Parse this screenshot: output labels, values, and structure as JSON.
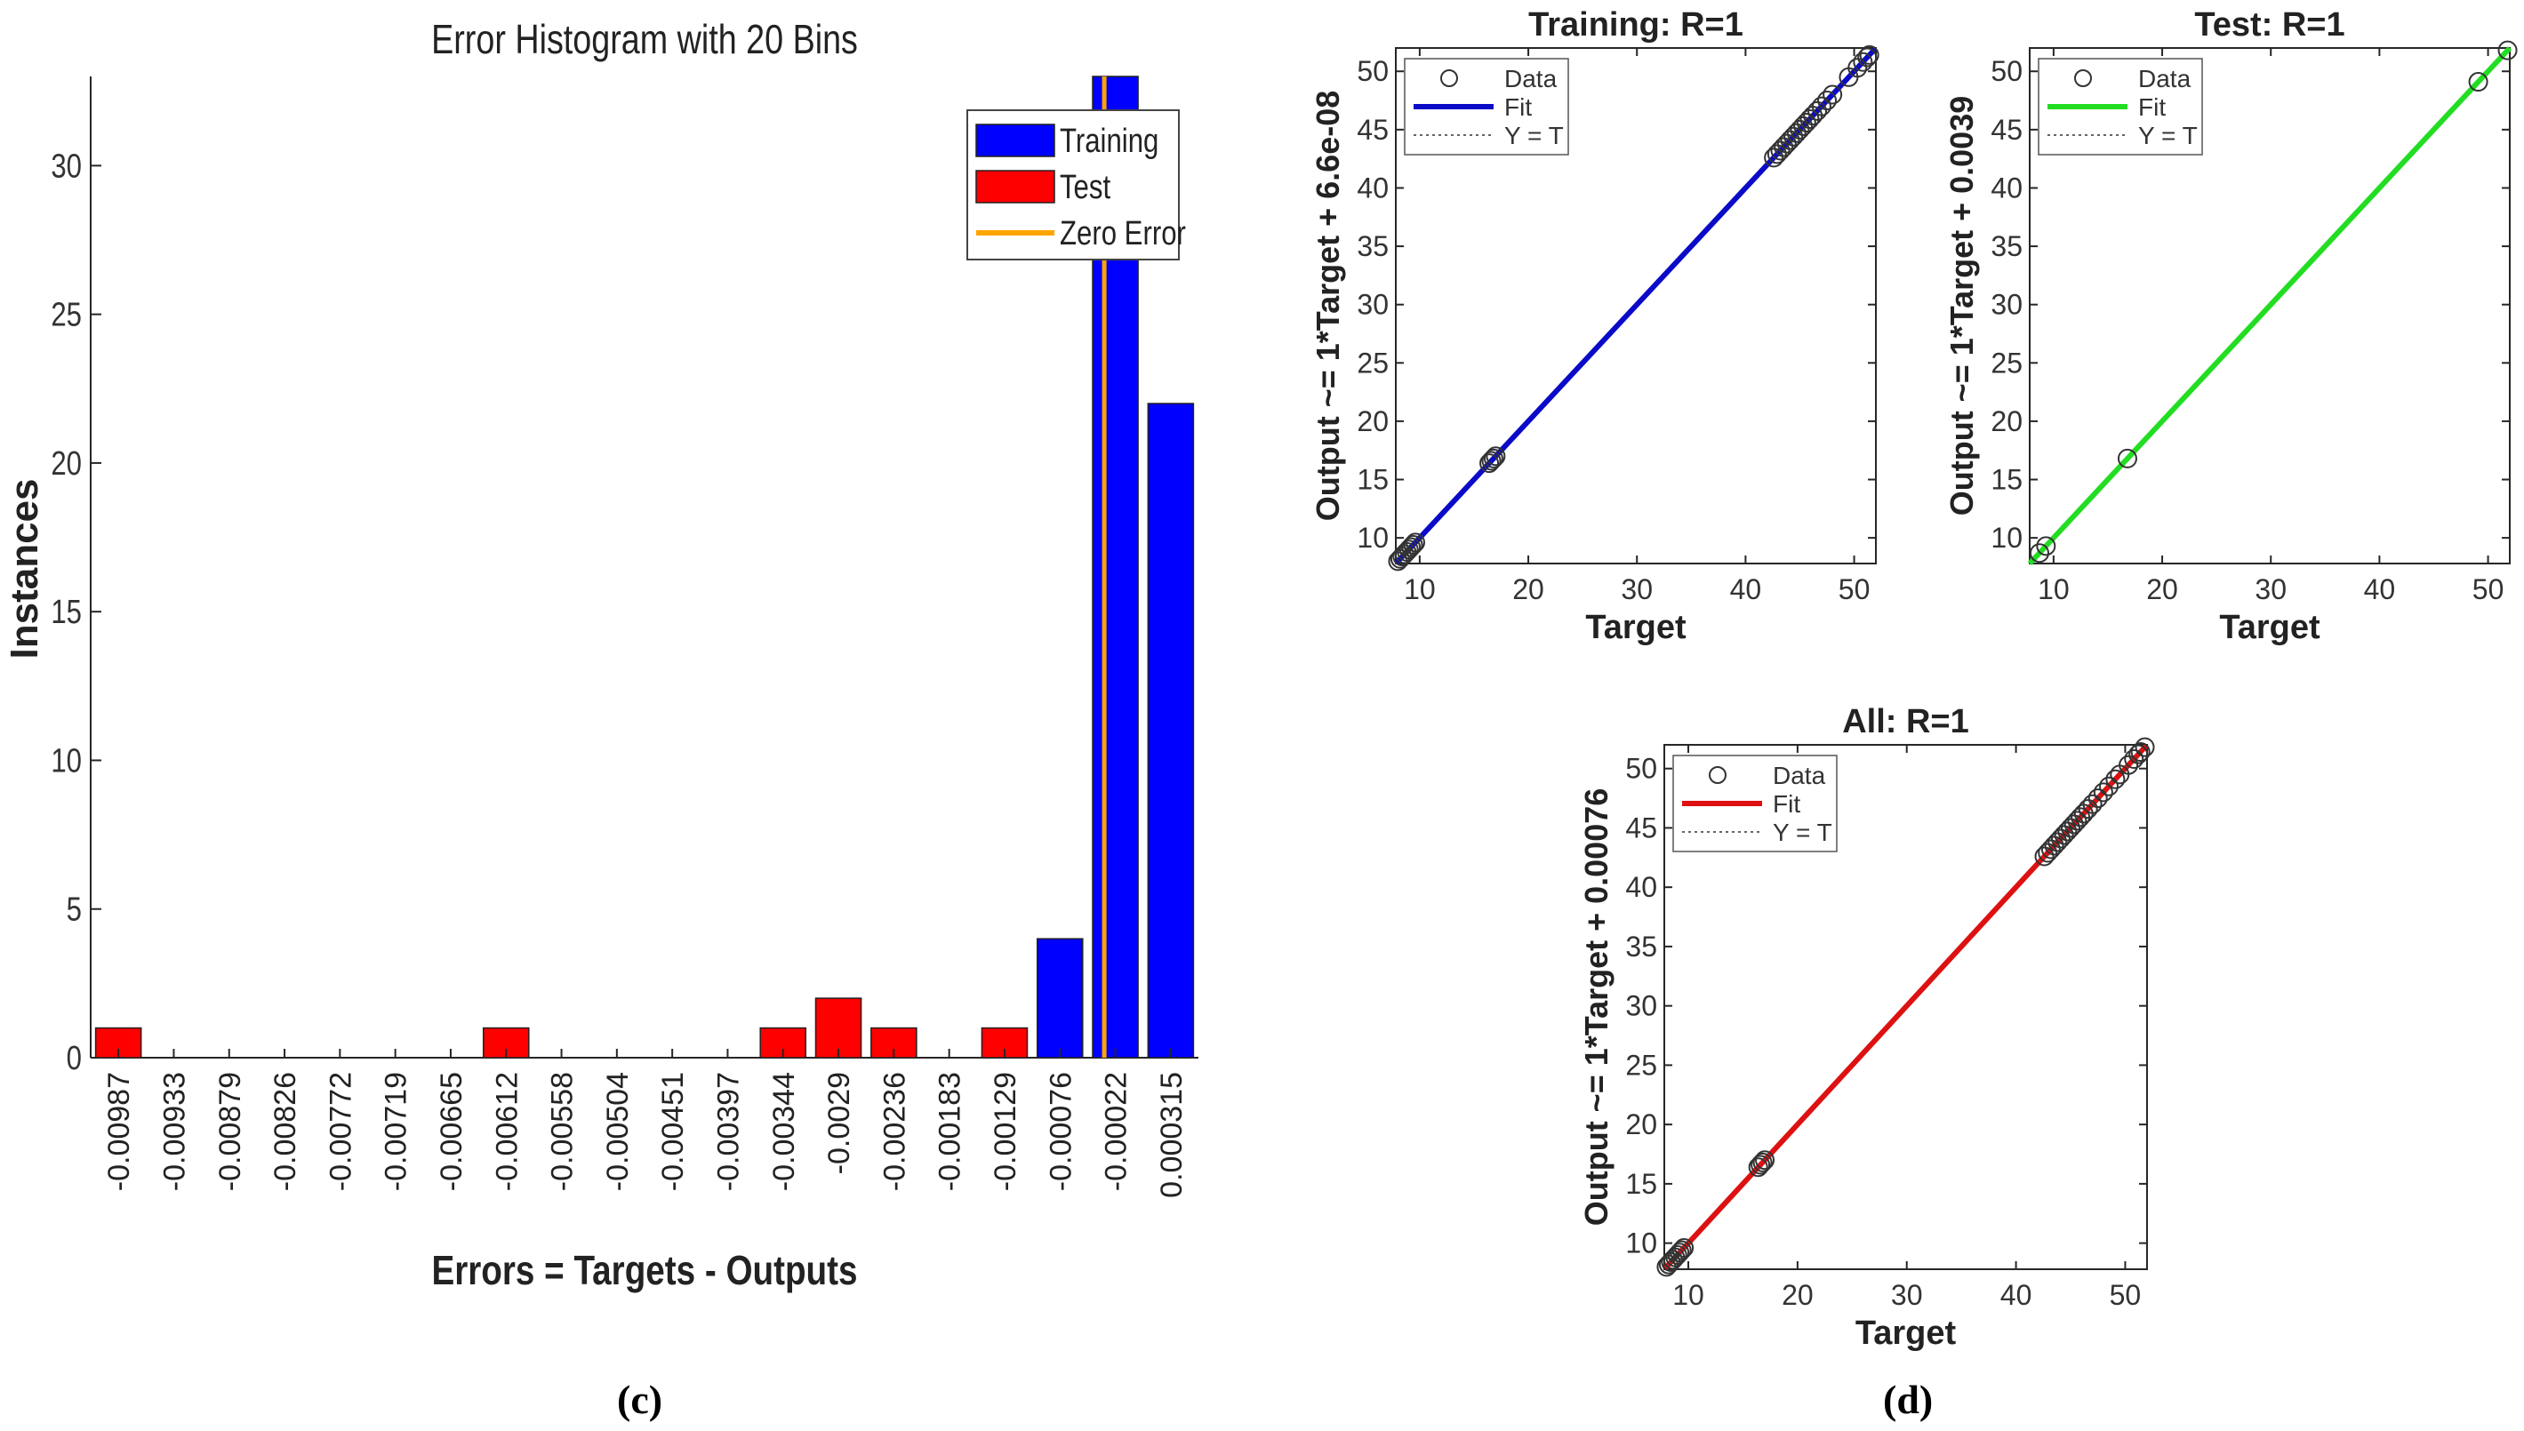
{
  "figure": {
    "caption_left": "(c)",
    "caption_right": "(d)"
  },
  "chart_data": [
    {
      "id": "histogram",
      "type": "bar",
      "title": "Error Histogram with 20 Bins",
      "xlabel": "Errors = Targets - Outputs",
      "ylabel": "Instances",
      "ylim": [
        0,
        33
      ],
      "yticks": [
        0,
        5,
        10,
        15,
        20,
        25,
        30
      ],
      "categories": [
        "-0.00987",
        "-0.00933",
        "-0.00879",
        "-0.00826",
        "-0.00772",
        "-0.00719",
        "-0.00665",
        "-0.00612",
        "-0.00558",
        "-0.00504",
        "-0.00451",
        "-0.00397",
        "-0.00344",
        "-0.0029",
        "-0.00236",
        "-0.00183",
        "-0.00129",
        "-0.00076",
        "-0.00022",
        "0.000315"
      ],
      "series": [
        {
          "name": "Training",
          "color": "#0000ff",
          "values": [
            0,
            0,
            0,
            0,
            0,
            0,
            0,
            0,
            0,
            0,
            0,
            0,
            0,
            0,
            0,
            0,
            0,
            4,
            33,
            22
          ]
        },
        {
          "name": "Test",
          "color": "#ff0000",
          "values": [
            1,
            0,
            0,
            0,
            0,
            0,
            0,
            1,
            0,
            0,
            0,
            0,
            1,
            2,
            1,
            0,
            1,
            0,
            0,
            0
          ]
        }
      ],
      "zero_error": {
        "name": "Zero Error",
        "color": "#ffa500",
        "bin_position": 18.3
      },
      "legend": [
        "Training",
        "Test",
        "Zero Error"
      ]
    },
    {
      "id": "training",
      "type": "scatter",
      "title": "Training: R=1",
      "xlabel": "Target",
      "ylabel": "Output ~= 1*Target + 6.6e-08",
      "xlim": [
        7.8,
        52
      ],
      "ylim": [
        7.8,
        52
      ],
      "xticks": [
        10,
        20,
        30,
        40,
        50
      ],
      "yticks": [
        10,
        15,
        20,
        25,
        30,
        35,
        40,
        45,
        50
      ],
      "fit_color": "#0a0ac8",
      "legend": [
        "Data",
        "Fit",
        "Y = T"
      ],
      "points": [
        8.0,
        8.2,
        8.4,
        8.6,
        8.8,
        9.0,
        9.2,
        9.4,
        9.6,
        16.4,
        16.6,
        16.8,
        17.0,
        42.6,
        42.9,
        43.2,
        43.5,
        43.8,
        44.1,
        44.4,
        44.7,
        45.0,
        45.3,
        45.6,
        45.9,
        46.2,
        46.6,
        47.0,
        47.5,
        48.0,
        49.5,
        50.3,
        50.8,
        51.2,
        51.4
      ]
    },
    {
      "id": "test",
      "type": "scatter",
      "title": "Test: R=1",
      "xlabel": "Target",
      "ylabel": "Output ~= 1*Target + 0.0039",
      "xlim": [
        7.8,
        52
      ],
      "ylim": [
        7.8,
        52
      ],
      "xticks": [
        10,
        20,
        30,
        40,
        50
      ],
      "yticks": [
        10,
        15,
        20,
        25,
        30,
        35,
        40,
        45,
        50
      ],
      "fit_color": "#22dd22",
      "legend": [
        "Data",
        "Fit",
        "Y = T"
      ],
      "points": [
        8.7,
        9.3,
        16.8,
        49.1,
        51.8
      ]
    },
    {
      "id": "all",
      "type": "scatter",
      "title": "All: R=1",
      "xlabel": "Target",
      "ylabel": "Output ~= 1*Target + 0.00076",
      "xlim": [
        7.8,
        52
      ],
      "ylim": [
        7.8,
        52
      ],
      "xticks": [
        10,
        20,
        30,
        40,
        50
      ],
      "yticks": [
        10,
        15,
        20,
        25,
        30,
        35,
        40,
        45,
        50
      ],
      "fit_color": "#dd1111",
      "legend": [
        "Data",
        "Fit",
        "Y = T"
      ],
      "points": [
        8.0,
        8.2,
        8.4,
        8.6,
        8.8,
        9.0,
        9.2,
        9.4,
        9.6,
        16.4,
        16.6,
        16.8,
        17.0,
        42.6,
        42.9,
        43.2,
        43.5,
        43.8,
        44.1,
        44.4,
        44.7,
        45.0,
        45.3,
        45.6,
        45.9,
        46.2,
        46.6,
        47.0,
        47.5,
        48.0,
        48.5,
        49.1,
        49.5,
        50.3,
        50.8,
        51.2,
        51.4,
        51.8
      ]
    }
  ]
}
